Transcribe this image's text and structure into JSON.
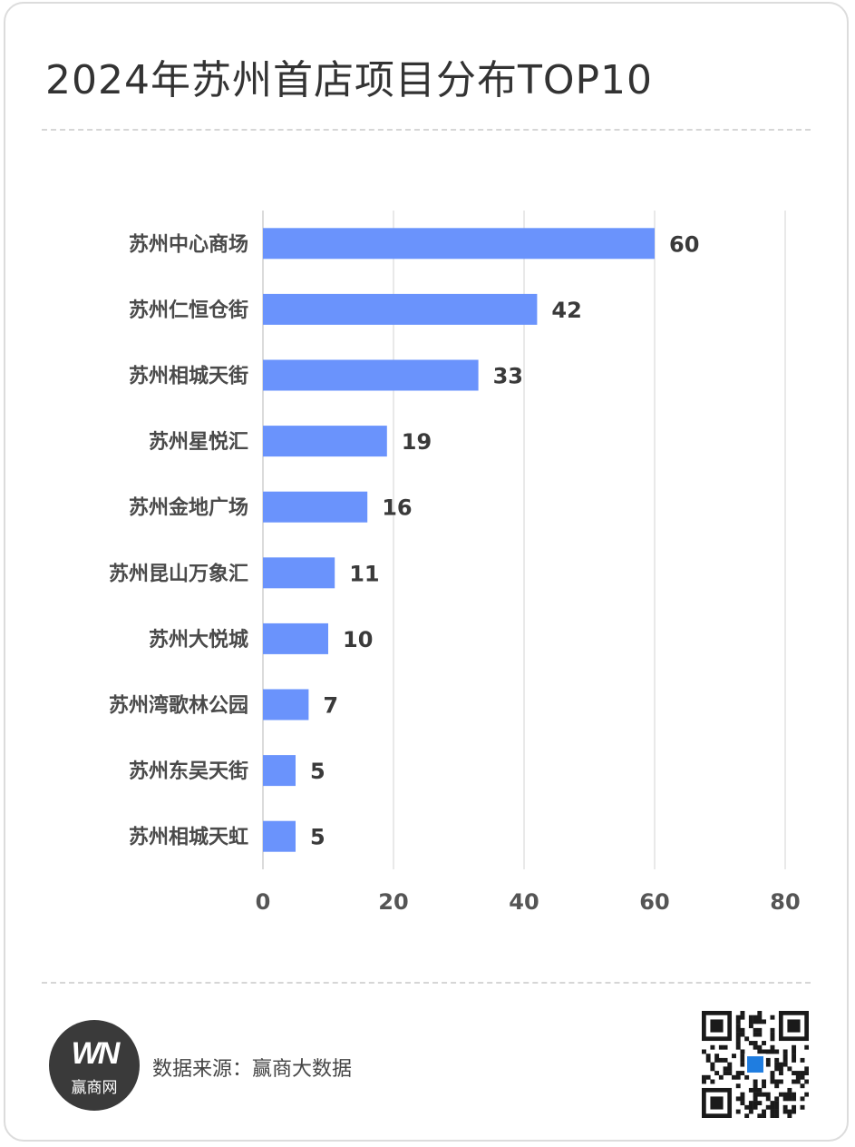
{
  "header": {
    "title": "2024年苏州首店项目分布TOP10"
  },
  "footer": {
    "source": "数据来源：赢商大数据",
    "logo_mark": "WN",
    "logo_name": "赢商网"
  },
  "colors": {
    "bar": "#6a93fc",
    "grid": "#e2e2e2",
    "axis": "#cfcfcf"
  },
  "chart_data": {
    "type": "bar",
    "orientation": "horizontal",
    "categories": [
      "苏州中心商场",
      "苏州仁恒仓街",
      "苏州相城天街",
      "苏州星悦汇",
      "苏州金地广场",
      "苏州昆山万象汇",
      "苏州大悦城",
      "苏州湾歌林公园",
      "苏州东吴天街",
      "苏州相城天虹"
    ],
    "values": [
      60,
      42,
      33,
      19,
      16,
      11,
      10,
      7,
      5,
      5
    ],
    "xlim": [
      0,
      80
    ],
    "xticks": [
      0,
      20,
      40,
      60,
      80
    ],
    "grid": true,
    "legend": "none"
  }
}
